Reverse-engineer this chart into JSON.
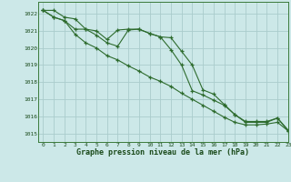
{
  "title": "Graphe pression niveau de la mer (hPa)",
  "background_color": "#cce8e8",
  "grid_color": "#aacccc",
  "line_color": "#2d6b2d",
  "xlim": [
    -0.5,
    23
  ],
  "ylim": [
    1014.5,
    1022.7
  ],
  "yticks": [
    1015,
    1016,
    1017,
    1018,
    1019,
    1020,
    1021,
    1022
  ],
  "xticks": [
    0,
    1,
    2,
    3,
    4,
    5,
    6,
    7,
    8,
    9,
    10,
    11,
    12,
    13,
    14,
    15,
    16,
    17,
    18,
    19,
    20,
    21,
    22,
    23
  ],
  "series1": [
    1022.2,
    1022.2,
    1021.8,
    1021.7,
    1021.1,
    1021.0,
    1020.5,
    1021.05,
    1021.1,
    1021.1,
    1020.85,
    1020.65,
    1019.9,
    1019.0,
    1017.5,
    1017.25,
    1016.95,
    1016.65,
    1016.1,
    1015.7,
    1015.7,
    1015.7,
    1015.9,
    1015.2
  ],
  "series2": [
    1022.2,
    1021.8,
    1021.6,
    1020.8,
    1020.3,
    1020.0,
    1019.55,
    1019.3,
    1018.95,
    1018.65,
    1018.3,
    1018.05,
    1017.75,
    1017.35,
    1017.0,
    1016.65,
    1016.3,
    1015.95,
    1015.65,
    1015.5,
    1015.5,
    1015.55,
    1015.65,
    1015.15
  ],
  "series3": [
    1022.2,
    1021.8,
    1021.6,
    1021.1,
    1021.1,
    1020.75,
    1020.3,
    1020.1,
    1021.05,
    1021.1,
    1020.85,
    1020.65,
    1020.6,
    1019.8,
    1019.0,
    1017.55,
    1017.3,
    1016.7,
    1016.1,
    1015.65,
    1015.65,
    1015.65,
    1015.9,
    1015.15
  ]
}
